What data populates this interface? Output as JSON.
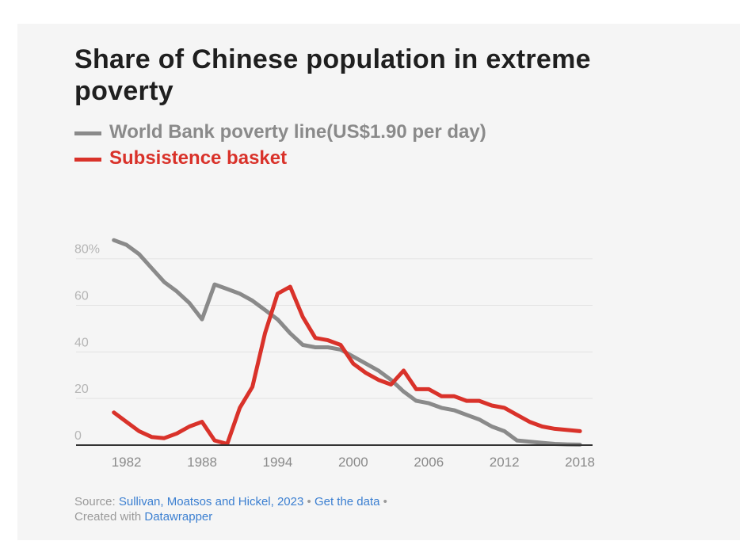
{
  "chart_data": {
    "type": "line",
    "title": "Share of Chinese population in extreme poverty",
    "xlabel": "",
    "ylabel": "",
    "xlim": [
      1978,
      2019
    ],
    "ylim": [
      0,
      85
    ],
    "x_ticks": [
      1982,
      1988,
      1994,
      2000,
      2006,
      2012,
      2018
    ],
    "y_ticks": [
      {
        "value": 0,
        "label": "0"
      },
      {
        "value": 20,
        "label": "20"
      },
      {
        "value": 40,
        "label": "40"
      },
      {
        "value": 60,
        "label": "60"
      },
      {
        "value": 80,
        "label": "80%"
      }
    ],
    "series": [
      {
        "name": "World Bank poverty line(US$1.90 per day)",
        "color": "#8a8a8a",
        "x": [
          1981,
          1982,
          1983,
          1984,
          1985,
          1986,
          1987,
          1988,
          1989,
          1990,
          1991,
          1992,
          1993,
          1994,
          1995,
          1996,
          1997,
          1998,
          1999,
          2000,
          2001,
          2002,
          2003,
          2004,
          2005,
          2006,
          2007,
          2008,
          2009,
          2010,
          2011,
          2012,
          2013,
          2014,
          2015,
          2016,
          2017,
          2018
        ],
        "values": [
          88,
          86,
          82,
          76,
          70,
          66,
          61,
          54,
          69,
          67,
          65,
          62,
          58,
          54,
          48,
          43,
          42,
          42,
          41,
          38,
          35,
          32,
          28,
          23,
          19,
          18,
          16,
          15,
          13,
          11,
          8,
          6,
          2,
          1.5,
          1,
          0.5,
          0.3,
          0.2
        ]
      },
      {
        "name": "Subsistence basket",
        "color": "#d9322a",
        "x": [
          1981,
          1982,
          1983,
          1984,
          1985,
          1986,
          1987,
          1988,
          1989,
          1990,
          1991,
          1992,
          1993,
          1994,
          1995,
          1996,
          1997,
          1998,
          1999,
          2000,
          2001,
          2002,
          2003,
          2004,
          2005,
          2006,
          2007,
          2008,
          2009,
          2010,
          2011,
          2012,
          2013,
          2014,
          2015,
          2016,
          2017,
          2018
        ],
        "values": [
          14,
          10,
          6,
          3.5,
          3,
          5,
          8,
          10,
          2,
          0.5,
          16,
          25,
          48,
          65,
          68,
          55,
          46,
          45,
          43,
          35,
          31,
          28,
          26,
          32,
          24,
          24,
          21,
          21,
          19,
          19,
          17,
          16,
          13,
          10,
          8,
          7,
          6.5,
          6
        ]
      }
    ]
  },
  "legend": {
    "gray_label": "World Bank poverty line(US$1.90 per day)",
    "red_label": "Subsistence basket"
  },
  "source": {
    "prefix": "Source: ",
    "authors": "Sullivan, Moatsos and Hickel, 2023",
    "sep1": " • ",
    "get_data": "Get the data",
    "sep2": " •",
    "created": "Created with ",
    "tool": "Datawrapper"
  }
}
